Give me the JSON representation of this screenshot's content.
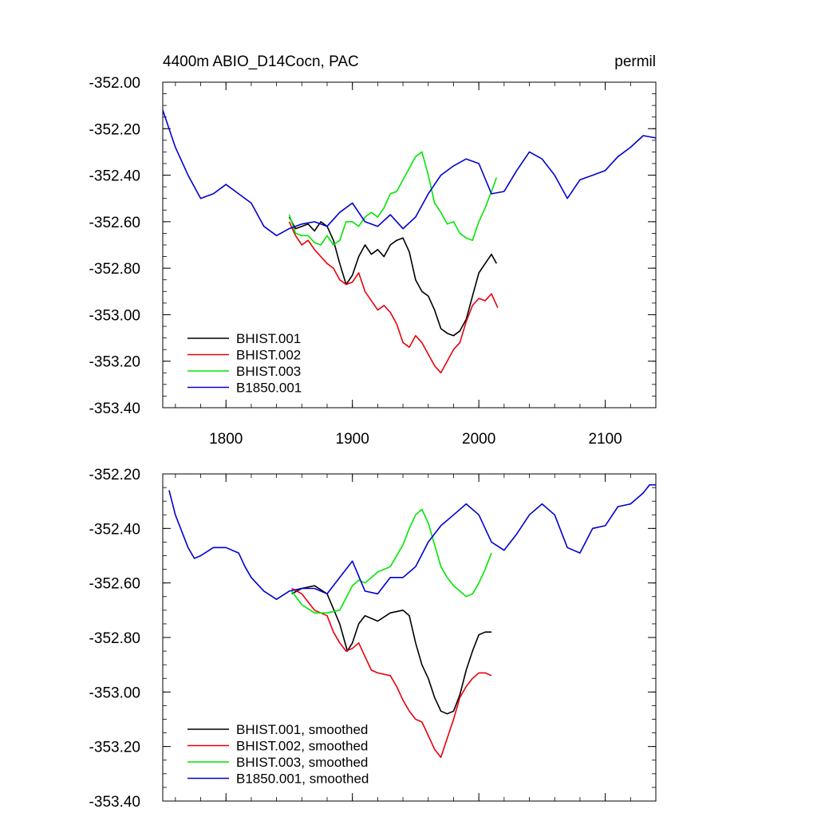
{
  "colors": {
    "black": "#000000",
    "red": "#e8000b",
    "green": "#00e600",
    "blue": "#0000d0"
  },
  "chart_data": [
    {
      "type": "line",
      "title_left": "4400m ABIO_D14Cocn, PAC",
      "title_right": "permil",
      "xlim": [
        1750,
        2140
      ],
      "ylim": [
        -353.4,
        -352.0
      ],
      "xticks": [
        1800,
        1900,
        2000,
        2100
      ],
      "xtick_labels": [
        "1800",
        "1900",
        "2000",
        "2100"
      ],
      "yticks": [
        -352.0,
        -352.2,
        -352.4,
        -352.6,
        -352.8,
        -353.0,
        -353.2,
        -353.4
      ],
      "ytick_labels": [
        "-352.00",
        "-352.20",
        "-352.40",
        "-352.60",
        "-352.80",
        "-353.00",
        "-353.20",
        "-353.40"
      ],
      "grid": false,
      "legend_position": "bottom-left",
      "series": [
        {
          "name": "BHIST.001",
          "color": "black",
          "x": [
            1850,
            1855,
            1860,
            1865,
            1870,
            1875,
            1880,
            1885,
            1890,
            1895,
            1900,
            1905,
            1910,
            1915,
            1920,
            1925,
            1930,
            1935,
            1940,
            1945,
            1950,
            1955,
            1960,
            1965,
            1970,
            1975,
            1980,
            1985,
            1990,
            1995,
            2000,
            2005,
            2010,
            2014
          ],
          "y": [
            -352.58,
            -352.63,
            -352.62,
            -352.61,
            -352.64,
            -352.6,
            -352.62,
            -352.68,
            -352.78,
            -352.87,
            -352.83,
            -352.75,
            -352.7,
            -352.74,
            -352.72,
            -352.75,
            -352.7,
            -352.68,
            -352.67,
            -352.73,
            -352.85,
            -352.9,
            -352.92,
            -352.98,
            -353.06,
            -353.08,
            -353.09,
            -353.07,
            -353.02,
            -352.92,
            -352.82,
            -352.78,
            -352.74,
            -352.78
          ]
        },
        {
          "name": "BHIST.002",
          "color": "red",
          "x": [
            1850,
            1855,
            1860,
            1865,
            1870,
            1875,
            1880,
            1885,
            1890,
            1895,
            1900,
            1905,
            1910,
            1915,
            1920,
            1925,
            1930,
            1935,
            1940,
            1945,
            1950,
            1955,
            1960,
            1965,
            1970,
            1975,
            1980,
            1985,
            1990,
            1995,
            2000,
            2005,
            2010,
            2015
          ],
          "y": [
            -352.6,
            -352.66,
            -352.7,
            -352.68,
            -352.72,
            -352.75,
            -352.78,
            -352.8,
            -352.85,
            -352.87,
            -352.86,
            -352.82,
            -352.9,
            -352.94,
            -352.98,
            -352.96,
            -352.99,
            -353.04,
            -353.12,
            -353.14,
            -353.09,
            -353.12,
            -353.17,
            -353.22,
            -353.25,
            -353.2,
            -353.15,
            -353.12,
            -353.03,
            -352.96,
            -352.93,
            -352.94,
            -352.91,
            -352.97
          ]
        },
        {
          "name": "BHIST.003",
          "color": "green",
          "x": [
            1850,
            1855,
            1860,
            1865,
            1870,
            1875,
            1880,
            1885,
            1890,
            1895,
            1900,
            1905,
            1910,
            1915,
            1920,
            1925,
            1930,
            1935,
            1940,
            1945,
            1950,
            1955,
            1960,
            1965,
            1970,
            1975,
            1980,
            1985,
            1990,
            1995,
            2000,
            2005,
            2010,
            2014
          ],
          "y": [
            -352.57,
            -352.65,
            -352.66,
            -352.66,
            -352.69,
            -352.7,
            -352.66,
            -352.7,
            -352.68,
            -352.6,
            -352.6,
            -352.62,
            -352.58,
            -352.56,
            -352.58,
            -352.54,
            -352.48,
            -352.47,
            -352.42,
            -352.37,
            -352.32,
            -352.3,
            -352.4,
            -352.52,
            -352.56,
            -352.61,
            -352.6,
            -352.65,
            -352.67,
            -352.68,
            -352.6,
            -352.54,
            -352.47,
            -352.41
          ]
        },
        {
          "name": "B1850.001",
          "color": "blue",
          "x": [
            1750,
            1760,
            1770,
            1780,
            1790,
            1800,
            1810,
            1820,
            1830,
            1840,
            1850,
            1860,
            1870,
            1880,
            1890,
            1900,
            1910,
            1920,
            1930,
            1940,
            1950,
            1960,
            1970,
            1980,
            1990,
            2000,
            2010,
            2020,
            2030,
            2040,
            2050,
            2060,
            2070,
            2080,
            2090,
            2100,
            2110,
            2120,
            2130,
            2140
          ],
          "y": [
            -352.12,
            -352.28,
            -352.4,
            -352.5,
            -352.48,
            -352.44,
            -352.48,
            -352.52,
            -352.62,
            -352.66,
            -352.63,
            -352.61,
            -352.6,
            -352.62,
            -352.56,
            -352.52,
            -352.6,
            -352.62,
            -352.57,
            -352.63,
            -352.58,
            -352.48,
            -352.4,
            -352.36,
            -352.33,
            -352.35,
            -352.48,
            -352.47,
            -352.38,
            -352.3,
            -352.33,
            -352.4,
            -352.5,
            -352.42,
            -352.4,
            -352.38,
            -352.32,
            -352.28,
            -352.23,
            -352.24
          ]
        }
      ],
      "legend": {
        "entries": [
          "BHIST.001",
          "BHIST.002",
          "BHIST.003",
          "B1850.001"
        ]
      }
    },
    {
      "type": "line",
      "xlim": [
        1750,
        2140
      ],
      "ylim": [
        -353.4,
        -352.2
      ],
      "xticks": [
        1800,
        1900,
        2000,
        2100
      ],
      "yticks": [
        -352.2,
        -352.4,
        -352.6,
        -352.8,
        -353.0,
        -353.2,
        -353.4
      ],
      "ytick_labels": [
        "-352.20",
        "-352.40",
        "-352.60",
        "-352.80",
        "-353.00",
        "-353.20",
        "-353.40"
      ],
      "grid": false,
      "legend_position": "bottom-left",
      "series": [
        {
          "name": "BHIST.001, smoothed",
          "color": "black",
          "x": [
            1852,
            1860,
            1870,
            1880,
            1890,
            1896,
            1900,
            1905,
            1910,
            1920,
            1930,
            1940,
            1945,
            1950,
            1955,
            1960,
            1965,
            1970,
            1975,
            1980,
            1985,
            1990,
            1995,
            2000,
            2005,
            2010
          ],
          "y": [
            -352.64,
            -352.62,
            -352.61,
            -352.64,
            -352.75,
            -352.85,
            -352.82,
            -352.75,
            -352.72,
            -352.74,
            -352.71,
            -352.7,
            -352.72,
            -352.82,
            -352.9,
            -352.95,
            -353.02,
            -353.07,
            -353.08,
            -353.07,
            -353.01,
            -352.92,
            -352.85,
            -352.79,
            -352.78,
            -352.78
          ]
        },
        {
          "name": "BHIST.002, smoothed",
          "color": "red",
          "x": [
            1852,
            1860,
            1870,
            1880,
            1885,
            1890,
            1895,
            1900,
            1905,
            1910,
            1915,
            1920,
            1930,
            1935,
            1940,
            1945,
            1950,
            1955,
            1960,
            1965,
            1970,
            1975,
            1980,
            1985,
            1990,
            1995,
            2000,
            2005,
            2010
          ],
          "y": [
            -352.62,
            -352.64,
            -352.7,
            -352.72,
            -352.78,
            -352.82,
            -352.85,
            -352.84,
            -352.82,
            -352.87,
            -352.92,
            -352.93,
            -352.94,
            -352.98,
            -353.03,
            -353.07,
            -353.1,
            -353.11,
            -353.16,
            -353.21,
            -353.24,
            -353.17,
            -353.1,
            -353.02,
            -352.98,
            -352.95,
            -352.93,
            -352.93,
            -352.94
          ]
        },
        {
          "name": "BHIST.003, smoothed",
          "color": "green",
          "x": [
            1852,
            1860,
            1870,
            1880,
            1890,
            1900,
            1905,
            1910,
            1920,
            1930,
            1940,
            1945,
            1950,
            1955,
            1960,
            1965,
            1970,
            1975,
            1980,
            1985,
            1990,
            1995,
            2000,
            2005,
            2010
          ],
          "y": [
            -352.63,
            -352.68,
            -352.71,
            -352.71,
            -352.7,
            -352.61,
            -352.59,
            -352.6,
            -352.56,
            -352.54,
            -352.46,
            -352.4,
            -352.35,
            -352.33,
            -352.38,
            -352.46,
            -352.54,
            -352.58,
            -352.61,
            -352.63,
            -352.65,
            -352.64,
            -352.6,
            -352.55,
            -352.49
          ]
        },
        {
          "name": "B1850.001, smoothed",
          "color": "blue",
          "x": [
            1755,
            1760,
            1770,
            1775,
            1780,
            1790,
            1800,
            1810,
            1815,
            1820,
            1830,
            1840,
            1850,
            1860,
            1870,
            1880,
            1890,
            1900,
            1910,
            1920,
            1930,
            1940,
            1950,
            1960,
            1970,
            1980,
            1990,
            2000,
            2010,
            2020,
            2030,
            2040,
            2050,
            2060,
            2070,
            2080,
            2090,
            2100,
            2110,
            2120,
            2130,
            2135,
            2140
          ],
          "y": [
            -352.26,
            -352.35,
            -352.47,
            -352.51,
            -352.5,
            -352.47,
            -352.47,
            -352.49,
            -352.54,
            -352.58,
            -352.63,
            -352.66,
            -352.63,
            -352.62,
            -352.62,
            -352.64,
            -352.58,
            -352.52,
            -352.63,
            -352.64,
            -352.58,
            -352.58,
            -352.54,
            -352.45,
            -352.39,
            -352.35,
            -352.31,
            -352.35,
            -352.45,
            -352.48,
            -352.42,
            -352.35,
            -352.31,
            -352.35,
            -352.47,
            -352.49,
            -352.4,
            -352.39,
            -352.32,
            -352.31,
            -352.27,
            -352.24,
            -352.24
          ]
        }
      ],
      "legend": {
        "entries": [
          "BHIST.001, smoothed",
          "BHIST.002, smoothed",
          "BHIST.003, smoothed",
          "B1850.001, smoothed"
        ]
      }
    }
  ]
}
